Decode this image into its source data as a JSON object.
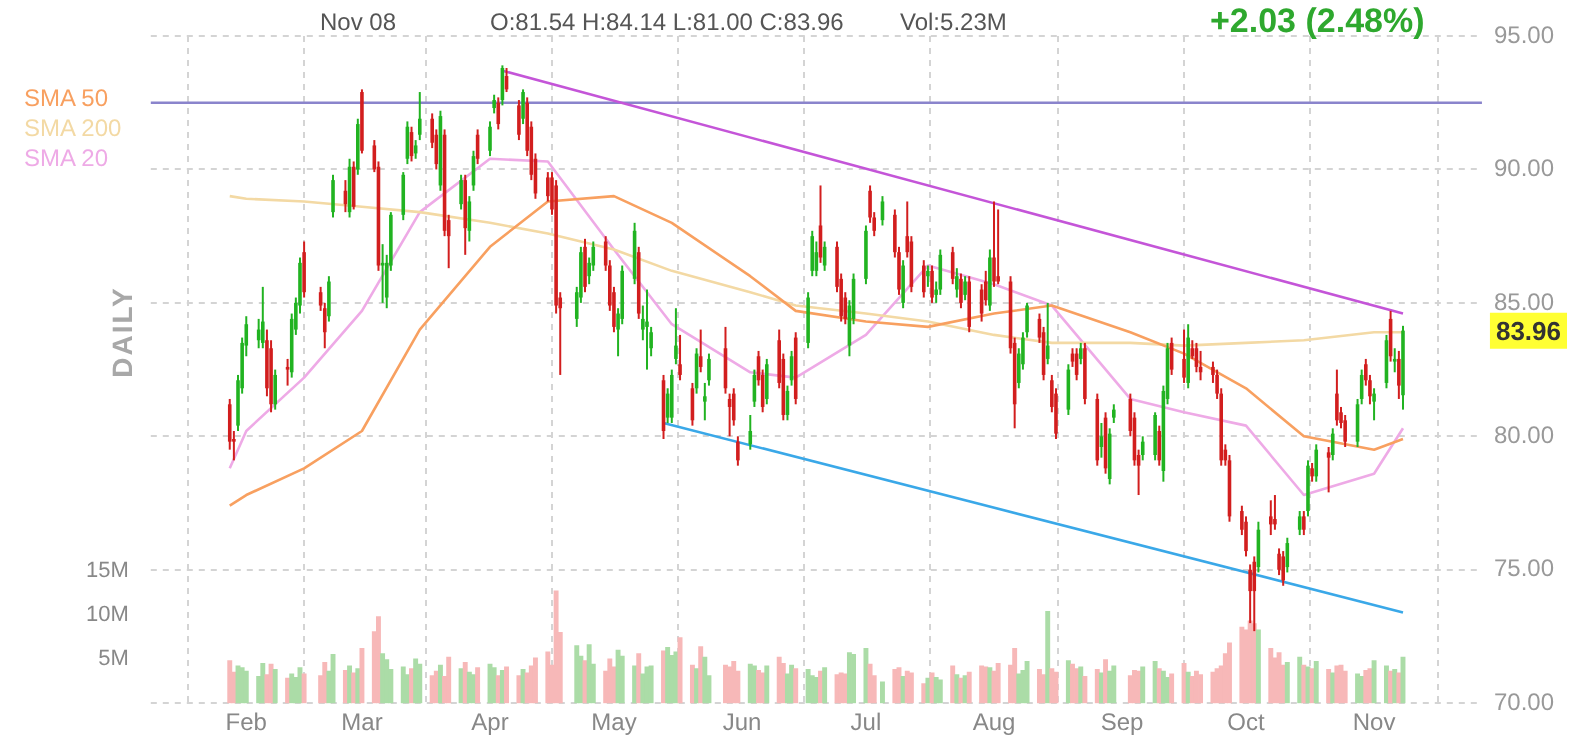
{
  "chart_data": {
    "type": "candlestick",
    "legend": "top left",
    "grid": true,
    "annotations": [
      "Nov 08",
      "O:81.54 H:84.14 L:81.00 C:83.96",
      "Vol:5.23M",
      "+2.03 (2.48%)",
      "DAILY",
      "83.96"
    ],
    "xlim": [
      "--01-25",
      "--11-11"
    ],
    "x": [
      "--01-28",
      "--01-29",
      "--01-30",
      "--01-31",
      "--02-01",
      "--02-04",
      "--02-05",
      "--02-06",
      "--02-07",
      "--02-08",
      "--02-11",
      "--02-12",
      "--02-13",
      "--02-14",
      "--02-15",
      "--02-19",
      "--02-20",
      "--02-21",
      "--02-22",
      "--02-25",
      "--02-26",
      "--02-27",
      "--02-28",
      "--03-01",
      "--03-04",
      "--03-05",
      "--03-06",
      "--03-07",
      "--03-08",
      "--03-11",
      "--03-12",
      "--03-13",
      "--03-14",
      "--03-15",
      "--03-18",
      "--03-19",
      "--03-20",
      "--03-21",
      "--03-22",
      "--03-25",
      "--03-26",
      "--03-27",
      "--03-28",
      "--03-29",
      "--04-01",
      "--04-02",
      "--04-03",
      "--04-04",
      "--04-05",
      "--04-08",
      "--04-09",
      "--04-10",
      "--04-11",
      "--04-12",
      "--04-15",
      "--04-16",
      "--04-17",
      "--04-18",
      "--04-22",
      "--04-23",
      "--04-24",
      "--04-25",
      "--04-26",
      "--04-29",
      "--04-30",
      "--05-01",
      "--05-02",
      "--05-03",
      "--05-06",
      "--05-07",
      "--05-08",
      "--05-09",
      "--05-10",
      "--05-13",
      "--05-14",
      "--05-15",
      "--05-16",
      "--05-17",
      "--05-20",
      "--05-21",
      "--05-22",
      "--05-23",
      "--05-24",
      "--05-28",
      "--05-29",
      "--05-30",
      "--05-31",
      "--06-03",
      "--06-04",
      "--06-05",
      "--06-06",
      "--06-07",
      "--06-10",
      "--06-11",
      "--06-12",
      "--06-13",
      "--06-14",
      "--06-17",
      "--06-18",
      "--06-19",
      "--06-20",
      "--06-21",
      "--06-24",
      "--06-25",
      "--06-26",
      "--06-27",
      "--06-28",
      "--07-01",
      "--07-02",
      "--07-03",
      "--07-05",
      "--07-08",
      "--07-09",
      "--07-10",
      "--07-11",
      "--07-12",
      "--07-15",
      "--07-16",
      "--07-17",
      "--07-18",
      "--07-19",
      "--07-22",
      "--07-23",
      "--07-24",
      "--07-25",
      "--07-26",
      "--07-29",
      "--07-30",
      "--07-31",
      "--08-01",
      "--08-02",
      "--08-05",
      "--08-06",
      "--08-07",
      "--08-08",
      "--08-09",
      "--08-12",
      "--08-13",
      "--08-14",
      "--08-15",
      "--08-16",
      "--08-19",
      "--08-20",
      "--08-21",
      "--08-22",
      "--08-23",
      "--08-26",
      "--08-27",
      "--08-28",
      "--08-29",
      "--08-30",
      "--09-03",
      "--09-04",
      "--09-05",
      "--09-06",
      "--09-09",
      "--09-10",
      "--09-11",
      "--09-12",
      "--09-13",
      "--09-16",
      "--09-17",
      "--09-18",
      "--09-19",
      "--09-20",
      "--09-23",
      "--09-24",
      "--09-25",
      "--09-26",
      "--09-27",
      "--09-30",
      "--10-01",
      "--10-02",
      "--10-03",
      "--10-04",
      "--10-07",
      "--10-08",
      "--10-09",
      "--10-10",
      "--10-11",
      "--10-14",
      "--10-15",
      "--10-16",
      "--10-17",
      "--10-18",
      "--10-21",
      "--10-22",
      "--10-23",
      "--10-24",
      "--10-25",
      "--10-28",
      "--10-29",
      "--10-30",
      "--10-31",
      "--11-01",
      "--11-04",
      "--11-05",
      "--11-06",
      "--11-07",
      "--11-08"
    ],
    "xticks": [
      {
        "value": "--02-01",
        "label": "Feb"
      },
      {
        "value": "--03-01",
        "label": "Mar"
      },
      {
        "value": "--04-01",
        "label": "Apr"
      },
      {
        "value": "--05-01",
        "label": "May"
      },
      {
        "value": "--06-01",
        "label": "Jun"
      },
      {
        "value": "--07-01",
        "label": "Jul"
      },
      {
        "value": "--08-01",
        "label": "Aug"
      },
      {
        "value": "--09-01",
        "label": "Sep"
      },
      {
        "value": "--10-01",
        "label": "Oct"
      },
      {
        "value": "--11-01",
        "label": "Nov"
      }
    ],
    "ylim": [
      70,
      95
    ],
    "yticks": [
      {
        "value": 70,
        "label": "70.00"
      },
      {
        "value": 75,
        "label": "75.00"
      },
      {
        "value": 80,
        "label": "80.00"
      },
      {
        "value": 85,
        "label": "85.00"
      },
      {
        "value": 90,
        "label": "90.00"
      },
      {
        "value": 95,
        "label": "95.00"
      }
    ],
    "y2lim": [
      0,
      75.7
    ],
    "y2ticks": [
      {
        "value": 5,
        "label": "5M"
      },
      {
        "value": 10,
        "label": "10M"
      },
      {
        "value": 15,
        "label": "15M"
      }
    ],
    "ref_lines": [
      {
        "axis": "y",
        "value": 92.5,
        "color": "#8a84cc"
      }
    ],
    "ohlc": [
      [
        81.2,
        81.4,
        79.5,
        79.8
      ],
      [
        79.9,
        80.2,
        79.1,
        79.8
      ],
      [
        80.4,
        82.3,
        80.2,
        82.1
      ],
      [
        81.8,
        83.7,
        81.6,
        83.5
      ],
      [
        83.4,
        84.5,
        83.0,
        84.2
      ],
      [
        83.6,
        84.4,
        83.3,
        84.0
      ],
      [
        83.5,
        85.6,
        83.3,
        84.3
      ],
      [
        83.6,
        84.0,
        81.5,
        81.8
      ],
      [
        83.3,
        83.6,
        80.9,
        81.2
      ],
      [
        81.2,
        82.5,
        81.0,
        82.3
      ],
      [
        82.6,
        82.9,
        81.9,
        82.5
      ],
      [
        82.4,
        84.6,
        82.2,
        84.4
      ],
      [
        84.0,
        85.2,
        83.8,
        85.0
      ],
      [
        84.9,
        86.7,
        84.6,
        86.5
      ],
      [
        86.9,
        87.3,
        85.2,
        85.4
      ],
      [
        85.4,
        85.6,
        84.7,
        84.9
      ],
      [
        84.8,
        85.0,
        83.3,
        83.9
      ],
      [
        84.5,
        86.0,
        84.3,
        85.8
      ],
      [
        88.4,
        89.8,
        88.2,
        89.6
      ],
      [
        89.2,
        89.6,
        88.4,
        88.7
      ],
      [
        88.4,
        90.4,
        88.2,
        90.1
      ],
      [
        90.1,
        90.3,
        88.5,
        88.6
      ],
      [
        90.0,
        91.9,
        89.8,
        91.7
      ],
      [
        92.9,
        93.0,
        90.6,
        90.7
      ],
      [
        90.9,
        91.1,
        89.9,
        90.0
      ],
      [
        90.1,
        90.3,
        86.2,
        86.4
      ],
      [
        86.4,
        87.2,
        85.0,
        86.5
      ],
      [
        85.2,
        86.8,
        84.8,
        86.5
      ],
      [
        86.4,
        88.4,
        86.2,
        88.3
      ],
      [
        88.3,
        89.9,
        88.1,
        89.8
      ],
      [
        90.4,
        91.8,
        90.2,
        91.6
      ],
      [
        91.4,
        91.6,
        90.3,
        90.5
      ],
      [
        90.6,
        91.1,
        90.4,
        90.9
      ],
      [
        91.3,
        92.9,
        91.1,
        91.9
      ],
      [
        91.9,
        92.1,
        90.8,
        91.0
      ],
      [
        91.3,
        91.5,
        90.0,
        90.2
      ],
      [
        89.4,
        92.2,
        89.2,
        92.0
      ],
      [
        91.3,
        91.5,
        87.5,
        87.7
      ],
      [
        88.1,
        88.3,
        86.3,
        87.5
      ],
      [
        88.7,
        89.8,
        88.5,
        89.6
      ],
      [
        89.6,
        89.8,
        86.8,
        87.8
      ],
      [
        87.7,
        89.0,
        87.3,
        88.8
      ],
      [
        89.4,
        90.7,
        89.2,
        90.5
      ],
      [
        91.3,
        91.5,
        90.2,
        90.4
      ],
      [
        90.7,
        91.8,
        90.5,
        91.6
      ],
      [
        92.3,
        92.8,
        92.1,
        92.6
      ],
      [
        92.5,
        92.7,
        91.5,
        91.7
      ],
      [
        92.6,
        93.9,
        92.4,
        93.8
      ],
      [
        93.5,
        93.8,
        92.9,
        93.0
      ],
      [
        92.4,
        92.6,
        91.1,
        91.3
      ],
      [
        91.9,
        93.0,
        91.7,
        92.9
      ],
      [
        92.5,
        92.7,
        90.5,
        90.7
      ],
      [
        91.6,
        91.8,
        89.6,
        89.8
      ],
      [
        90.4,
        90.6,
        88.9,
        89.1
      ],
      [
        89.7,
        89.9,
        88.8,
        89.0
      ],
      [
        89.7,
        89.9,
        88.3,
        88.5
      ],
      [
        89.4,
        89.6,
        84.6,
        84.9
      ],
      [
        85.2,
        85.4,
        82.3,
        84.8
      ],
      [
        84.4,
        85.6,
        84.1,
        85.4
      ],
      [
        85.2,
        87.1,
        85.0,
        86.9
      ],
      [
        87.1,
        87.4,
        85.4,
        85.6
      ],
      [
        86.0,
        86.7,
        85.7,
        86.5
      ],
      [
        86.4,
        87.3,
        86.2,
        87.1
      ],
      [
        87.3,
        87.5,
        86.2,
        86.4
      ],
      [
        86.4,
        86.6,
        84.7,
        84.9
      ],
      [
        85.4,
        85.6,
        83.9,
        84.1
      ],
      [
        84.0,
        84.8,
        83.0,
        84.6
      ],
      [
        84.4,
        86.4,
        84.2,
        86.2
      ],
      [
        85.9,
        88.0,
        85.7,
        87.7
      ],
      [
        86.9,
        87.1,
        84.4,
        84.6
      ],
      [
        84.0,
        84.9,
        83.6,
        84.4
      ],
      [
        84.1,
        85.5,
        82.5,
        84.3
      ],
      [
        83.3,
        84.1,
        83.0,
        83.9
      ],
      [
        82.1,
        82.3,
        79.9,
        80.2
      ],
      [
        80.7,
        81.8,
        80.5,
        81.6
      ],
      [
        80.7,
        82.5,
        80.5,
        82.3
      ],
      [
        82.9,
        84.8,
        82.7,
        83.4
      ],
      [
        82.7,
        83.8,
        82.1,
        82.3
      ],
      [
        81.8,
        82.0,
        80.4,
        80.6
      ],
      [
        81.8,
        83.3,
        81.6,
        83.1
      ],
      [
        83.0,
        84.0,
        82.4,
        82.6
      ],
      [
        81.3,
        82.0,
        80.6,
        81.5
      ],
      [
        82.1,
        83.1,
        81.9,
        82.9
      ],
      [
        83.3,
        84.1,
        81.6,
        81.8
      ],
      [
        81.4,
        81.6,
        80.0,
        81.1
      ],
      [
        81.6,
        81.8,
        80.4,
        80.6
      ],
      [
        79.8,
        80.0,
        78.9,
        79.1
      ],
      [
        79.7,
        80.8,
        79.5,
        80.2
      ],
      [
        81.3,
        82.5,
        81.1,
        82.3
      ],
      [
        83.0,
        83.2,
        81.9,
        82.1
      ],
      [
        82.3,
        82.5,
        80.9,
        81.1
      ],
      [
        81.4,
        82.9,
        81.2,
        82.7
      ],
      [
        83.6,
        84.0,
        81.8,
        82.0
      ],
      [
        82.9,
        83.1,
        80.6,
        80.8
      ],
      [
        80.8,
        81.9,
        80.6,
        81.7
      ],
      [
        82.1,
        83.2,
        81.9,
        83.0
      ],
      [
        83.7,
        83.9,
        81.2,
        81.4
      ],
      [
        83.5,
        85.4,
        83.3,
        85.2
      ],
      [
        86.2,
        87.7,
        86.0,
        87.5
      ],
      [
        86.2,
        87.3,
        86.0,
        86.9
      ],
      [
        87.9,
        89.4,
        86.5,
        86.7
      ],
      [
        86.4,
        87.3,
        86.2,
        87.1
      ],
      [
        87.1,
        87.3,
        85.4,
        85.6
      ],
      [
        85.9,
        86.1,
        84.3,
        84.5
      ],
      [
        85.2,
        85.4,
        84.2,
        84.4
      ],
      [
        83.4,
        85.1,
        83.0,
        84.9
      ],
      [
        84.4,
        86.1,
        84.2,
        85.9
      ],
      [
        85.9,
        87.9,
        85.7,
        87.7
      ],
      [
        89.2,
        89.4,
        88.0,
        88.2
      ],
      [
        88.2,
        88.4,
        87.5,
        87.7
      ],
      [
        88.1,
        89.0,
        87.9,
        88.8
      ],
      [
        88.3,
        88.5,
        86.7,
        86.9
      ],
      [
        86.9,
        87.1,
        85.3,
        85.5
      ],
      [
        85.0,
        86.6,
        84.8,
        86.4
      ],
      [
        87.5,
        88.8,
        86.7,
        86.9
      ],
      [
        87.3,
        87.5,
        85.4,
        85.6
      ],
      [
        86.4,
        86.6,
        85.2,
        85.4
      ],
      [
        86.0,
        86.4,
        85.6,
        86.2
      ],
      [
        86.2,
        86.4,
        85.0,
        85.2
      ],
      [
        85.3,
        85.8,
        85.0,
        85.5
      ],
      [
        85.5,
        87.0,
        85.3,
        86.8
      ],
      [
        86.9,
        87.1,
        85.7,
        85.9
      ],
      [
        85.5,
        86.3,
        85.2,
        86.0
      ],
      [
        85.9,
        86.1,
        84.8,
        85.0
      ],
      [
        85.3,
        86.0,
        85.1,
        85.8
      ],
      [
        85.8,
        86.0,
        83.9,
        84.1
      ],
      [
        85.5,
        85.7,
        84.3,
        84.6
      ],
      [
        85.8,
        86.2,
        84.9,
        85.1
      ],
      [
        84.9,
        87.0,
        84.7,
        86.7
      ],
      [
        86.7,
        88.8,
        85.6,
        85.8
      ],
      [
        86.0,
        88.5,
        85.7,
        85.8
      ],
      [
        85.8,
        86.0,
        83.1,
        83.3
      ],
      [
        83.5,
        83.7,
        80.3,
        81.2
      ],
      [
        82.0,
        83.3,
        81.8,
        83.1
      ],
      [
        82.7,
        83.9,
        82.5,
        83.7
      ],
      [
        83.9,
        85.0,
        83.7,
        84.9
      ],
      [
        84.4,
        84.6,
        83.5,
        83.7
      ],
      [
        83.9,
        84.1,
        82.1,
        82.3
      ],
      [
        82.9,
        85.0,
        82.7,
        83.4
      ],
      [
        82.1,
        82.3,
        80.9,
        81.1
      ],
      [
        81.6,
        81.8,
        79.9,
        80.1
      ],
      [
        81.0,
        82.7,
        80.8,
        82.5
      ],
      [
        83.1,
        83.3,
        82.6,
        82.8
      ],
      [
        83.1,
        83.3,
        82.1,
        82.3
      ],
      [
        82.9,
        83.5,
        82.7,
        83.3
      ],
      [
        83.3,
        83.5,
        81.2,
        81.4
      ],
      [
        81.4,
        81.6,
        78.9,
        79.1
      ],
      [
        79.6,
        80.5,
        79.2,
        80.0
      ],
      [
        80.7,
        80.9,
        78.6,
        78.8
      ],
      [
        78.4,
        80.3,
        78.2,
        80.1
      ],
      [
        80.7,
        81.2,
        80.5,
        81.0
      ],
      [
        81.4,
        81.6,
        80.0,
        80.2
      ],
      [
        80.7,
        80.9,
        78.9,
        79.1
      ],
      [
        79.3,
        79.5,
        77.8,
        78.9
      ],
      [
        79.3,
        80.0,
        79.1,
        79.8
      ],
      [
        79.3,
        80.9,
        79.1,
        80.8
      ],
      [
        80.2,
        80.4,
        78.9,
        79.1
      ],
      [
        78.7,
        81.9,
        78.3,
        81.7
      ],
      [
        81.4,
        83.5,
        81.2,
        83.3
      ],
      [
        83.5,
        83.7,
        82.3,
        82.5
      ],
      [
        82.9,
        84.0,
        82.0,
        82.2
      ],
      [
        82.0,
        84.2,
        81.8,
        83.7
      ],
      [
        83.3,
        83.6,
        82.9,
        83.0
      ],
      [
        83.3,
        83.5,
        82.4,
        82.6
      ],
      [
        82.6,
        83.2,
        82.1,
        82.4
      ],
      [
        82.6,
        82.8,
        82.0,
        82.3
      ],
      [
        82.3,
        82.5,
        81.4,
        81.6
      ],
      [
        81.6,
        81.8,
        78.9,
        79.1
      ],
      [
        79.5,
        79.7,
        78.9,
        79.1
      ],
      [
        79.1,
        79.3,
        76.8,
        77.0
      ],
      [
        77.2,
        77.4,
        76.3,
        76.5
      ],
      [
        76.8,
        77.0,
        75.5,
        75.7
      ],
      [
        75.0,
        75.2,
        73.0,
        74.2
      ],
      [
        75.3,
        75.5,
        72.7,
        74.2
      ],
      [
        75.1,
        76.8,
        74.9,
        76.5
      ],
      [
        77.0,
        77.6,
        76.3,
        76.7
      ],
      [
        76.9,
        77.8,
        76.5,
        76.7
      ],
      [
        75.6,
        75.8,
        74.8,
        75.0
      ],
      [
        75.5,
        75.7,
        74.4,
        74.6
      ],
      [
        75.1,
        76.2,
        74.9,
        76.0
      ],
      [
        76.5,
        77.2,
        76.3,
        77.0
      ],
      [
        77.0,
        77.2,
        76.3,
        76.5
      ],
      [
        77.2,
        79.1,
        77.0,
        78.9
      ],
      [
        78.8,
        79.0,
        78.3,
        78.5
      ],
      [
        78.5,
        79.7,
        78.3,
        79.5
      ],
      [
        79.4,
        79.6,
        77.9,
        79.2
      ],
      [
        79.3,
        80.3,
        79.1,
        80.1
      ],
      [
        81.6,
        82.5,
        80.4,
        80.6
      ],
      [
        80.9,
        81.1,
        80.3,
        80.5
      ],
      [
        80.6,
        80.8,
        79.6,
        79.8
      ],
      [
        79.8,
        81.4,
        79.6,
        81.2
      ],
      [
        81.4,
        82.5,
        81.2,
        82.3
      ],
      [
        82.7,
        82.9,
        81.9,
        82.1
      ],
      [
        82.1,
        82.3,
        81.2,
        81.5
      ],
      [
        81.3,
        81.8,
        80.6,
        81.6
      ],
      [
        82.0,
        83.8,
        81.8,
        83.6
      ],
      [
        84.4,
        84.7,
        82.8,
        83.0
      ],
      [
        82.8,
        83.3,
        82.4,
        82.9
      ],
      [
        82.9,
        83.2,
        81.4,
        81.9
      ],
      [
        81.54,
        84.14,
        81.0,
        83.96
      ]
    ],
    "colors": [
      "#d21e1e",
      "#d21e1e",
      "#21b321",
      "#21b321",
      "#21b321",
      "#21b321",
      "#21b321",
      "#d21e1e",
      "#d21e1e",
      "#21b321",
      "#d21e1e",
      "#21b321",
      "#21b321",
      "#21b321",
      "#d21e1e",
      "#d21e1e",
      "#d21e1e",
      "#21b321",
      "#21b321",
      "#d21e1e",
      "#21b321",
      "#d21e1e",
      "#21b321",
      "#d21e1e",
      "#d21e1e",
      "#d21e1e",
      "#21b321",
      "#21b321",
      "#21b321",
      "#21b321",
      "#21b321",
      "#d21e1e",
      "#21b321",
      "#21b321",
      "#d21e1e",
      "#d21e1e",
      "#21b321",
      "#d21e1e",
      "#d21e1e",
      "#21b321",
      "#d21e1e",
      "#21b321",
      "#21b321",
      "#d21e1e",
      "#21b321",
      "#21b321",
      "#d21e1e",
      "#21b321",
      "#d21e1e",
      "#d21e1e",
      "#21b321",
      "#d21e1e",
      "#d21e1e",
      "#d21e1e",
      "#d21e1e",
      "#d21e1e",
      "#d21e1e",
      "#d21e1e",
      "#21b321",
      "#21b321",
      "#d21e1e",
      "#21b321",
      "#21b321",
      "#d21e1e",
      "#d21e1e",
      "#d21e1e",
      "#21b321",
      "#21b321",
      "#21b321",
      "#d21e1e",
      "#21b321",
      "#21b321",
      "#21b321",
      "#d21e1e",
      "#21b321",
      "#21b321",
      "#21b321",
      "#d21e1e",
      "#d21e1e",
      "#21b321",
      "#d21e1e",
      "#21b321",
      "#21b321",
      "#d21e1e",
      "#d21e1e",
      "#d21e1e",
      "#d21e1e",
      "#21b321",
      "#21b321",
      "#d21e1e",
      "#d21e1e",
      "#21b321",
      "#d21e1e",
      "#d21e1e",
      "#21b321",
      "#21b321",
      "#d21e1e",
      "#21b321",
      "#21b321",
      "#21b321",
      "#d21e1e",
      "#21b321",
      "#d21e1e",
      "#d21e1e",
      "#d21e1e",
      "#21b321",
      "#21b321",
      "#21b321",
      "#d21e1e",
      "#d21e1e",
      "#21b321",
      "#d21e1e",
      "#d21e1e",
      "#21b321",
      "#d21e1e",
      "#d21e1e",
      "#d21e1e",
      "#21b321",
      "#d21e1e",
      "#21b321",
      "#21b321",
      "#d21e1e",
      "#21b321",
      "#d21e1e",
      "#21b321",
      "#d21e1e",
      "#d21e1e",
      "#d21e1e",
      "#21b321",
      "#d21e1e",
      "#d21e1e",
      "#d21e1e",
      "#d21e1e",
      "#21b321",
      "#21b321",
      "#21b321",
      "#d21e1e",
      "#d21e1e",
      "#21b321",
      "#d21e1e",
      "#d21e1e",
      "#21b321",
      "#d21e1e",
      "#d21e1e",
      "#21b321",
      "#d21e1e",
      "#d21e1e",
      "#21b321",
      "#d21e1e",
      "#21b321",
      "#21b321",
      "#d21e1e",
      "#d21e1e",
      "#d21e1e",
      "#21b321",
      "#21b321",
      "#d21e1e",
      "#21b321",
      "#21b321",
      "#d21e1e",
      "#d21e1e",
      "#21b321",
      "#d21e1e",
      "#d21e1e",
      "#d21e1e",
      "#d21e1e",
      "#d21e1e",
      "#d21e1e",
      "#d21e1e",
      "#d21e1e",
      "#d21e1e",
      "#d21e1e",
      "#d21e1e",
      "#d21e1e",
      "#21b321",
      "#d21e1e",
      "#d21e1e",
      "#d21e1e",
      "#d21e1e",
      "#21b321",
      "#21b321",
      "#d21e1e",
      "#21b321",
      "#d21e1e",
      "#21b321",
      "#d21e1e",
      "#21b321",
      "#d21e1e",
      "#d21e1e",
      "#d21e1e",
      "#21b321",
      "#21b321",
      "#d21e1e",
      "#d21e1e",
      "#21b321",
      "#21b321",
      "#d21e1e",
      "#21b321",
      "#d21e1e",
      "#21b321"
    ],
    "series": [
      {
        "type": "bar",
        "axis": "y2",
        "values": [
          4.8,
          3.5,
          4.2,
          4.0,
          3.6,
          3.0,
          4.5,
          3.2,
          4.4,
          3.8,
          2.8,
          3.3,
          2.9,
          4.0,
          3.3,
          3.1,
          4.6,
          3.6,
          5.5,
          3.7,
          4.2,
          3.4,
          3.9,
          6.2,
          8.1,
          9.8,
          5.6,
          4.9,
          3.8,
          4.1,
          3.2,
          3.9,
          5.0,
          4.4,
          3.1,
          3.6,
          4.3,
          3.0,
          5.2,
          3.9,
          4.6,
          3.5,
          3.2,
          4.0,
          4.4,
          4.0,
          3.1,
          3.7,
          4.1,
          3.1,
          3.8,
          3.4,
          4.2,
          5.1,
          5.8,
          4.3,
          12.7,
          8.0,
          6.5,
          5.3,
          4.8,
          6.6,
          4.4,
          3.6,
          5.0,
          4.1,
          6.0,
          5.3,
          4.2,
          5.6,
          3.3,
          4.1,
          4.2,
          5.9,
          6.3,
          5.4,
          5.8,
          7.4,
          4.3,
          3.9,
          6.4,
          5.2,
          3.1,
          4.3,
          4.1,
          4.7,
          3.6,
          4.4,
          4.2,
          3.7,
          3.4,
          4.2,
          5.2,
          4.5,
          3.3,
          4.3,
          3.9,
          3.8,
          3.1,
          2.9,
          3.6,
          4.0,
          3.2,
          3.4,
          3.3,
          5.7,
          5.5,
          6.2,
          4.4,
          3.1,
          2.4,
          3.8,
          4.0,
          3.0,
          3.6,
          3.4,
          2.2,
          2.8,
          3.4,
          2.9,
          2.6,
          4.2,
          3.2,
          2.8,
          3.1,
          3.5,
          4.2,
          4.1,
          4.0,
          3.6,
          4.5,
          4.3,
          6.2,
          3.3,
          3.7,
          4.7,
          3.8,
          3.2,
          10.4,
          3.9,
          3.5,
          4.8,
          4.4,
          3.9,
          4.1,
          3.0,
          3.8,
          3.4,
          4.9,
          3.6,
          4.2,
          3.1,
          3.7,
          3.6,
          4.1,
          4.7,
          3.9,
          3.6,
          2.9,
          3.3,
          4.5,
          3.5,
          3.0,
          3.6,
          3.2,
          3.5,
          3.9,
          4.2,
          5.6,
          6.8,
          8.6,
          8.3,
          9.3,
          9.0,
          8.3,
          6.2,
          5.1,
          5.7,
          4.3,
          4.6,
          5.2,
          4.3,
          4.1,
          3.9,
          4.7,
          3.8,
          3.4,
          4.2,
          4.3,
          3.6,
          3.3,
          3.0,
          3.7,
          3.9,
          4.8,
          4.2,
          3.6,
          3.8,
          3.4,
          5.2
        ],
        "colors": [
          "#f7b8b8",
          "#f7b8b8",
          "#abdca7",
          "#abdca7",
          "#abdca7",
          "#abdca7",
          "#abdca7",
          "#f7b8b8",
          "#f7b8b8",
          "#abdca7",
          "#f7b8b8",
          "#abdca7",
          "#abdca7",
          "#abdca7",
          "#f7b8b8",
          "#f7b8b8",
          "#f7b8b8",
          "#abdca7",
          "#abdca7",
          "#f7b8b8",
          "#abdca7",
          "#f7b8b8",
          "#abdca7",
          "#f7b8b8",
          "#f7b8b8",
          "#f7b8b8",
          "#abdca7",
          "#abdca7",
          "#abdca7",
          "#abdca7",
          "#abdca7",
          "#f7b8b8",
          "#abdca7",
          "#abdca7",
          "#f7b8b8",
          "#f7b8b8",
          "#abdca7",
          "#f7b8b8",
          "#f7b8b8",
          "#abdca7",
          "#f7b8b8",
          "#abdca7",
          "#abdca7",
          "#f7b8b8",
          "#abdca7",
          "#abdca7",
          "#f7b8b8",
          "#abdca7",
          "#f7b8b8",
          "#f7b8b8",
          "#abdca7",
          "#f7b8b8",
          "#f7b8b8",
          "#f7b8b8",
          "#f7b8b8",
          "#f7b8b8",
          "#f7b8b8",
          "#f7b8b8",
          "#abdca7",
          "#abdca7",
          "#f7b8b8",
          "#abdca7",
          "#abdca7",
          "#f7b8b8",
          "#f7b8b8",
          "#f7b8b8",
          "#abdca7",
          "#abdca7",
          "#abdca7",
          "#f7b8b8",
          "#abdca7",
          "#abdca7",
          "#abdca7",
          "#f7b8b8",
          "#abdca7",
          "#abdca7",
          "#abdca7",
          "#f7b8b8",
          "#f7b8b8",
          "#abdca7",
          "#f7b8b8",
          "#abdca7",
          "#abdca7",
          "#f7b8b8",
          "#f7b8b8",
          "#f7b8b8",
          "#f7b8b8",
          "#abdca7",
          "#abdca7",
          "#f7b8b8",
          "#f7b8b8",
          "#abdca7",
          "#f7b8b8",
          "#f7b8b8",
          "#abdca7",
          "#abdca7",
          "#f7b8b8",
          "#abdca7",
          "#abdca7",
          "#abdca7",
          "#f7b8b8",
          "#abdca7",
          "#f7b8b8",
          "#f7b8b8",
          "#f7b8b8",
          "#abdca7",
          "#abdca7",
          "#abdca7",
          "#f7b8b8",
          "#f7b8b8",
          "#abdca7",
          "#f7b8b8",
          "#f7b8b8",
          "#abdca7",
          "#f7b8b8",
          "#f7b8b8",
          "#f7b8b8",
          "#abdca7",
          "#f7b8b8",
          "#abdca7",
          "#abdca7",
          "#f7b8b8",
          "#abdca7",
          "#f7b8b8",
          "#abdca7",
          "#f7b8b8",
          "#f7b8b8",
          "#f7b8b8",
          "#abdca7",
          "#f7b8b8",
          "#f7b8b8",
          "#f7b8b8",
          "#f7b8b8",
          "#abdca7",
          "#abdca7",
          "#abdca7",
          "#f7b8b8",
          "#f7b8b8",
          "#abdca7",
          "#f7b8b8",
          "#f7b8b8",
          "#abdca7",
          "#f7b8b8",
          "#f7b8b8",
          "#abdca7",
          "#f7b8b8",
          "#f7b8b8",
          "#abdca7",
          "#f7b8b8",
          "#abdca7",
          "#abdca7",
          "#f7b8b8",
          "#f7b8b8",
          "#f7b8b8",
          "#abdca7",
          "#abdca7",
          "#f7b8b8",
          "#abdca7",
          "#abdca7",
          "#f7b8b8",
          "#f7b8b8",
          "#abdca7",
          "#f7b8b8",
          "#f7b8b8",
          "#f7b8b8",
          "#f7b8b8",
          "#f7b8b8",
          "#f7b8b8",
          "#f7b8b8",
          "#f7b8b8",
          "#f7b8b8",
          "#f7b8b8",
          "#f7b8b8",
          "#f7b8b8",
          "#abdca7",
          "#f7b8b8",
          "#f7b8b8",
          "#f7b8b8",
          "#f7b8b8",
          "#abdca7",
          "#abdca7",
          "#f7b8b8",
          "#abdca7",
          "#f7b8b8",
          "#abdca7",
          "#f7b8b8",
          "#abdca7",
          "#f7b8b8",
          "#f7b8b8",
          "#f7b8b8",
          "#abdca7",
          "#abdca7",
          "#f7b8b8",
          "#f7b8b8",
          "#abdca7",
          "#abdca7",
          "#f7b8b8",
          "#abdca7",
          "#f7b8b8",
          "#abdca7"
        ]
      },
      {
        "type": "line",
        "name": "SMA 50",
        "color": "#f8a060",
        "x": [
          "--01-28",
          "--02-01",
          "--02-15",
          "--03-01",
          "--03-15",
          "--04-01",
          "--04-15",
          "--05-01",
          "--05-15",
          "--06-03",
          "--06-14",
          "--07-01",
          "--07-16",
          "--08-01",
          "--08-15",
          "--09-03",
          "--09-16",
          "--10-01",
          "--10-15",
          "--11-01",
          "--11-08"
        ],
        "values": [
          77.4,
          77.8,
          78.8,
          80.2,
          84.0,
          87.1,
          88.8,
          89.0,
          88.0,
          86.0,
          84.7,
          84.3,
          84.1,
          84.6,
          84.9,
          83.9,
          83.1,
          81.8,
          80.0,
          79.5,
          79.9
        ]
      },
      {
        "type": "line",
        "name": "SMA 200",
        "color": "#f3d9a4",
        "x": [
          "--01-28",
          "--02-01",
          "--02-15",
          "--03-01",
          "--03-15",
          "--04-01",
          "--04-15",
          "--05-01",
          "--05-15",
          "--06-03",
          "--06-14",
          "--07-01",
          "--07-16",
          "--08-01",
          "--08-15",
          "--09-03",
          "--09-16",
          "--10-01",
          "--10-15",
          "--11-01",
          "--11-08"
        ],
        "values": [
          89.0,
          88.9,
          88.8,
          88.6,
          88.4,
          88.0,
          87.6,
          87.0,
          86.2,
          85.4,
          84.9,
          84.6,
          84.3,
          83.8,
          83.5,
          83.5,
          83.4,
          83.5,
          83.6,
          83.9,
          83.9
        ]
      },
      {
        "type": "line",
        "name": "SMA 20",
        "color": "#eeaae6",
        "x": [
          "--01-28",
          "--02-01",
          "--02-15",
          "--03-01",
          "--03-15",
          "--04-01",
          "--04-15",
          "--05-01",
          "--05-15",
          "--06-03",
          "--06-14",
          "--07-01",
          "--07-16",
          "--08-01",
          "--08-15",
          "--09-03",
          "--09-16",
          "--10-01",
          "--10-15",
          "--11-01",
          "--11-08"
        ],
        "values": [
          78.8,
          80.2,
          82.2,
          84.7,
          88.4,
          90.4,
          90.3,
          87.0,
          84.2,
          82.4,
          82.2,
          83.8,
          86.4,
          85.7,
          84.9,
          81.4,
          80.9,
          80.4,
          77.8,
          78.6,
          80.3
        ]
      },
      {
        "type": "line",
        "color": "#c455d8",
        "x": [
          "--04-04",
          "--11-08"
        ],
        "values": [
          93.7,
          84.6
        ]
      },
      {
        "type": "line",
        "color": "#3aa8e8",
        "x": [
          "--05-13",
          "--11-08"
        ],
        "values": [
          80.5,
          73.4
        ]
      }
    ]
  }
}
